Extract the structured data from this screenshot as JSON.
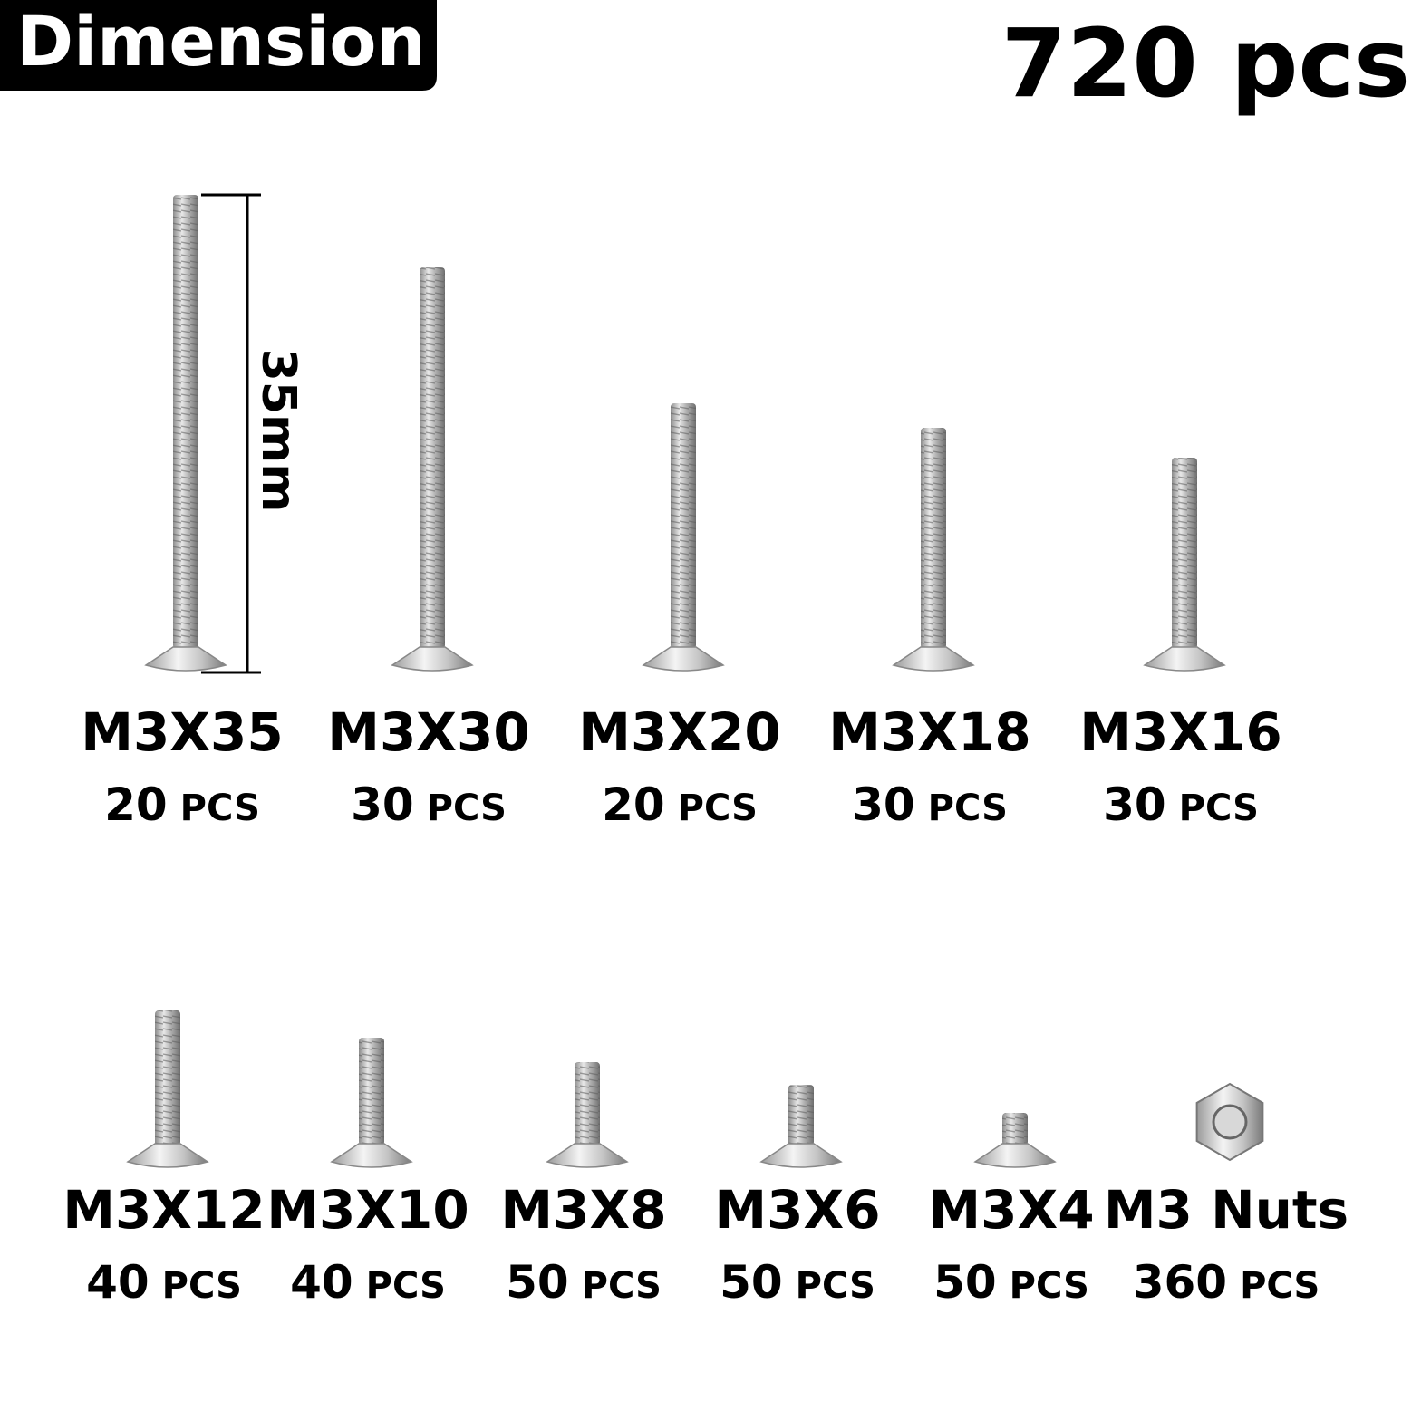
{
  "header": {
    "badge": "Dimension",
    "total": "720 pcs"
  },
  "dimension_label": "35mm",
  "items": [
    {
      "name": "M3X35",
      "qty": "20",
      "unit": "PCS"
    },
    {
      "name": "M3X30",
      "qty": "30",
      "unit": "PCS"
    },
    {
      "name": "M3X20",
      "qty": "20",
      "unit": "PCS"
    },
    {
      "name": "M3X18",
      "qty": "30",
      "unit": "PCS"
    },
    {
      "name": "M3X16",
      "qty": "30",
      "unit": "PCS"
    },
    {
      "name": "M3X12",
      "qty": "40",
      "unit": "PCS"
    },
    {
      "name": "M3X10",
      "qty": "40",
      "unit": "PCS"
    },
    {
      "name": "M3X8",
      "qty": "50",
      "unit": "PCS"
    },
    {
      "name": "M3X6",
      "qty": "50",
      "unit": "PCS"
    },
    {
      "name": "M3X4",
      "qty": "50",
      "unit": "PCS"
    },
    {
      "name": "M3 Nuts",
      "qty": "360",
      "unit": "PCS"
    }
  ]
}
